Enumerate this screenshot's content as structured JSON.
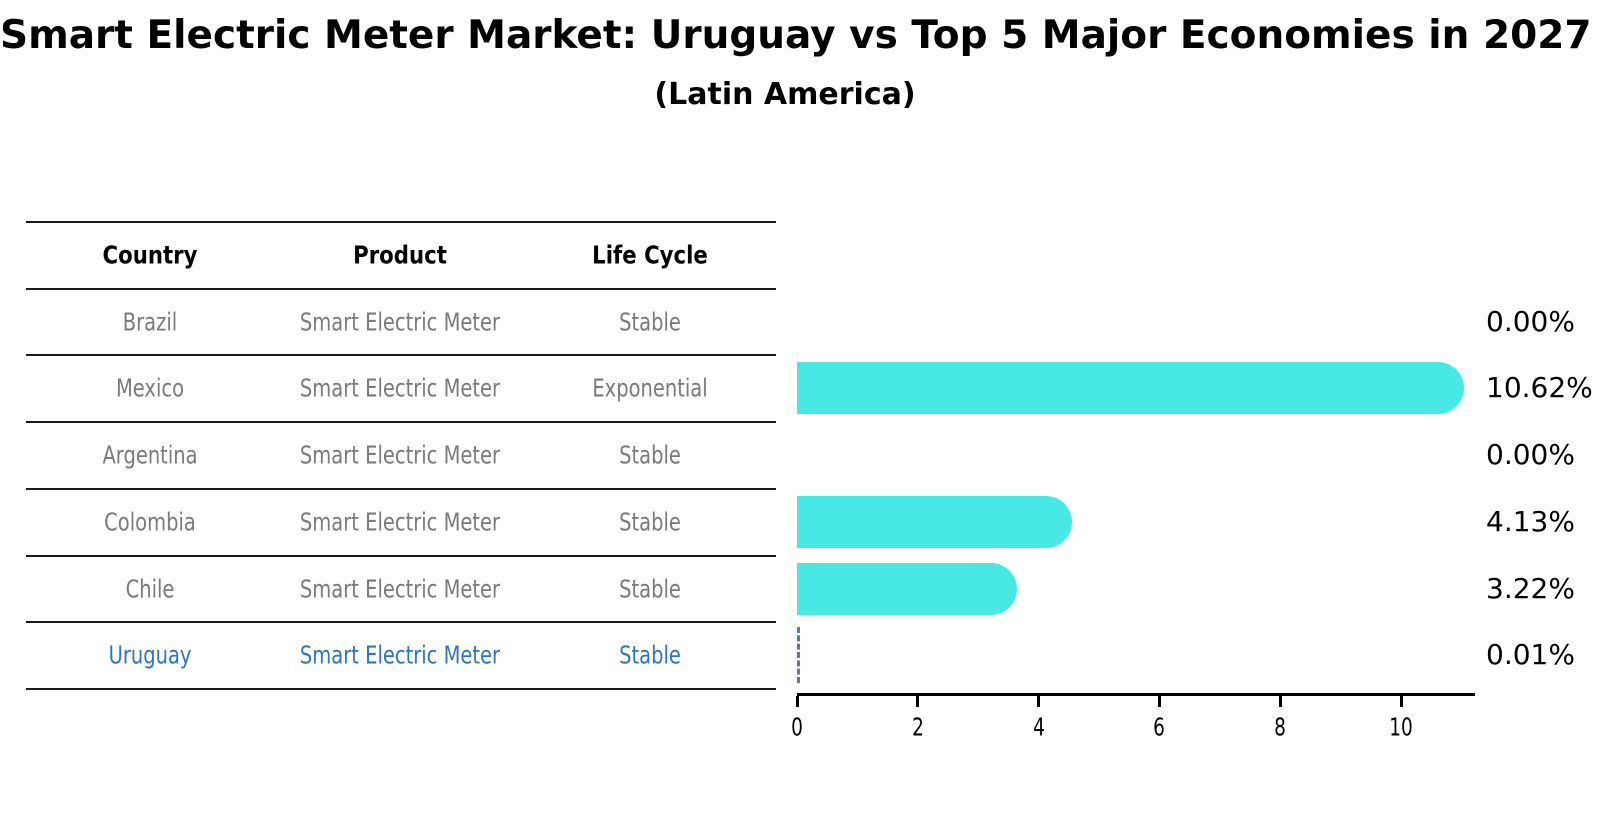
{
  "title": "Smart Electric Meter Market: Uruguay vs Top 5 Major Economies in 2027",
  "subtitle": "(Latin America)",
  "table": {
    "headers": [
      "Country",
      "Product",
      "Life Cycle"
    ],
    "rows": [
      {
        "country": "Brazil",
        "product": "Smart Electric Meter",
        "life_cycle": "Stable",
        "highlighted": false
      },
      {
        "country": "Mexico",
        "product": "Smart Electric Meter",
        "life_cycle": "Exponential",
        "highlighted": false
      },
      {
        "country": "Argentina",
        "product": "Smart Electric Meter",
        "life_cycle": "Stable",
        "highlighted": false
      },
      {
        "country": "Colombia",
        "product": "Smart Electric Meter",
        "life_cycle": "Stable",
        "highlighted": false
      },
      {
        "country": "Chile",
        "product": "Smart Electric Meter",
        "life_cycle": "Stable",
        "highlighted": false
      },
      {
        "country": "Uruguay",
        "product": "Smart Electric Meter",
        "life_cycle": "Stable",
        "highlighted": true
      }
    ]
  },
  "chart_data": {
    "type": "bar",
    "orientation": "horizontal",
    "title": "Smart Electric Meter Market: Uruguay vs Top 5 Major Economies in 2027",
    "subtitle": "(Latin America)",
    "categories": [
      "Brazil",
      "Mexico",
      "Argentina",
      "Colombia",
      "Chile",
      "Uruguay"
    ],
    "values": [
      0.0,
      10.62,
      0.0,
      4.13,
      3.22,
      0.01
    ],
    "value_labels": [
      "0.00%",
      "10.62%",
      "0.00%",
      "4.13%",
      "3.22%",
      "0.01%"
    ],
    "x_ticks": [
      0,
      2,
      4,
      6,
      8,
      10
    ],
    "xlim": [
      0,
      11.2
    ],
    "xlabel": "",
    "ylabel": "",
    "grid": false,
    "legend": "none",
    "bar_color": "#48e8e4",
    "highlight_marker": "dashed-line",
    "highlight_marker_color": "#4c80b4"
  },
  "colors": {
    "text_primary": "#000000",
    "text_muted": "#7a7a7a",
    "highlight_text": "#2d76bd",
    "line": "#1a1a1a"
  }
}
